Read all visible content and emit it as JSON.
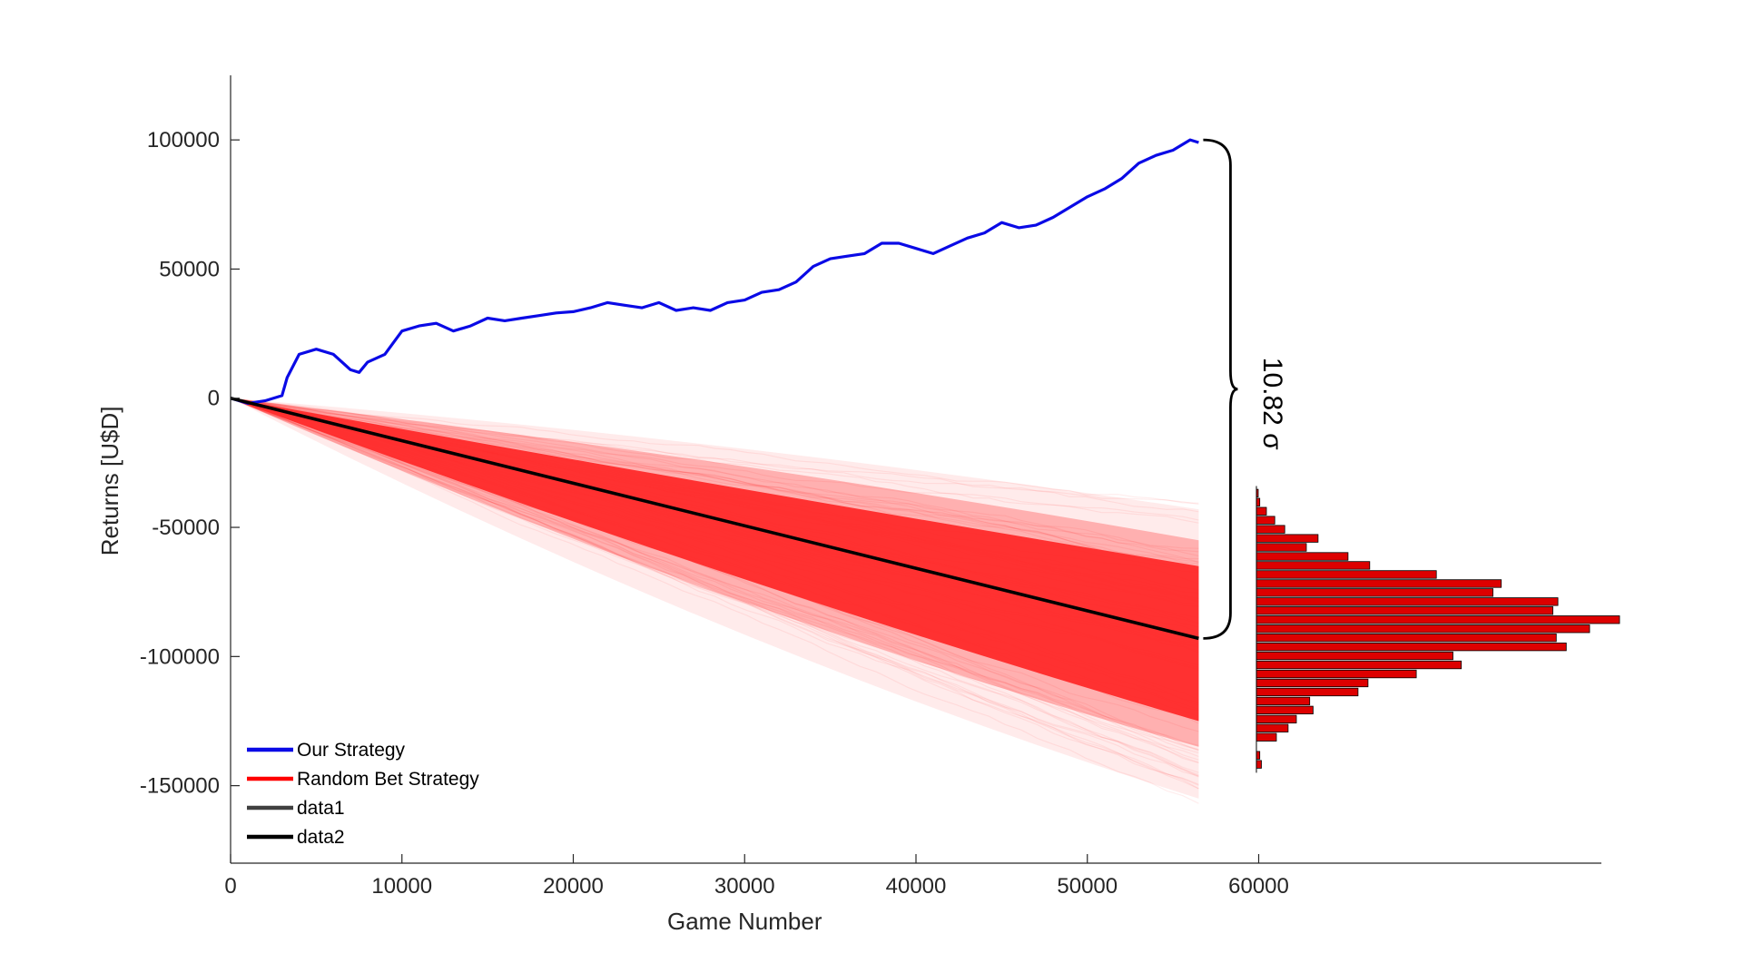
{
  "chart_data": {
    "type": "line",
    "xlabel": "Game Number",
    "ylabel": "Returns [U$D]",
    "xlim": [
      0,
      80000
    ],
    "ylim": [
      -180000,
      125000
    ],
    "x_ticks": [
      0,
      10000,
      20000,
      30000,
      40000,
      50000,
      60000
    ],
    "x_tick_labels": [
      "0",
      "10000",
      "20000",
      "30000",
      "40000",
      "50000",
      "60000"
    ],
    "y_ticks": [
      100000,
      50000,
      0,
      -50000,
      -100000,
      -150000
    ],
    "y_tick_labels": [
      "100000",
      "50000",
      "0",
      "-50000",
      "-100000",
      "-150000"
    ],
    "grid": false,
    "legend_position": "bottom-left",
    "legend": [
      {
        "label": "Our Strategy",
        "color": "#0a0ae6"
      },
      {
        "label": "Random Bet Strategy",
        "color": "#ff0000"
      },
      {
        "label": "data1",
        "color": "#404040"
      },
      {
        "label": "data2",
        "color": "#000000"
      }
    ],
    "annotation": {
      "text": "10.82 σ",
      "from_y": 100000,
      "to_y": -93000,
      "x": 56500
    },
    "series": [
      {
        "name": "Our Strategy",
        "color": "#0a0ae6",
        "x": [
          0,
          1000,
          2000,
          3000,
          3300,
          4000,
          5000,
          6000,
          7000,
          7500,
          8000,
          9000,
          10000,
          11000,
          12000,
          13000,
          14000,
          15000,
          16000,
          17000,
          18000,
          19000,
          20000,
          21000,
          22000,
          23000,
          24000,
          25000,
          26000,
          27000,
          28000,
          29000,
          30000,
          31000,
          32000,
          33000,
          34000,
          35000,
          36000,
          37000,
          38000,
          39000,
          40000,
          41000,
          42000,
          43000,
          44000,
          45000,
          46000,
          47000,
          48000,
          49000,
          50000,
          51000,
          52000,
          53000,
          54000,
          55000,
          56000,
          56500
        ],
        "y": [
          0,
          -2000,
          -1000,
          1000,
          8000,
          17000,
          19000,
          17000,
          11000,
          10000,
          14000,
          17000,
          26000,
          28000,
          29000,
          26000,
          28000,
          31000,
          30000,
          31000,
          32000,
          33000,
          33500,
          35000,
          37000,
          36000,
          35000,
          37000,
          34000,
          35000,
          34000,
          37000,
          38000,
          41000,
          42000,
          45000,
          51000,
          54000,
          55000,
          56000,
          60000,
          60000,
          58000,
          56000,
          59000,
          62000,
          64000,
          68000,
          66000,
          67000,
          70000,
          74000,
          78000,
          81000,
          85000,
          91000,
          94000,
          96000,
          100000,
          99000
        ]
      },
      {
        "name": "data2",
        "color": "#000000",
        "x": [
          0,
          56500
        ],
        "y": [
          0,
          -93000
        ]
      }
    ],
    "random_bet_strategy": {
      "name": "Random Bet Strategy",
      "color": "#ff0000",
      "x_end": 56500,
      "mean_y_end": -93000,
      "inner_band_y_end": [
        -65000,
        -125000
      ],
      "outer_band_y_end": [
        -43000,
        -155000
      ]
    },
    "histogram": {
      "color": "#dd0000",
      "bin_centers": [
        -37000,
        -40500,
        -44000,
        -47500,
        -51000,
        -54500,
        -58000,
        -61500,
        -65000,
        -68500,
        -72000,
        -75500,
        -79000,
        -82500,
        -86000,
        -89500,
        -93000,
        -96500,
        -100000,
        -103500,
        -107000,
        -110500,
        -114000,
        -117500,
        -121000,
        -124500,
        -128000,
        -131500,
        -135000,
        -138500,
        -142000
      ],
      "counts": [
        1,
        2,
        6,
        11,
        17,
        37,
        30,
        55,
        68,
        108,
        147,
        142,
        181,
        178,
        218,
        200,
        180,
        186,
        118,
        123,
        96,
        67,
        61,
        32,
        34,
        24,
        19,
        12,
        0,
        2,
        3
      ]
    }
  }
}
